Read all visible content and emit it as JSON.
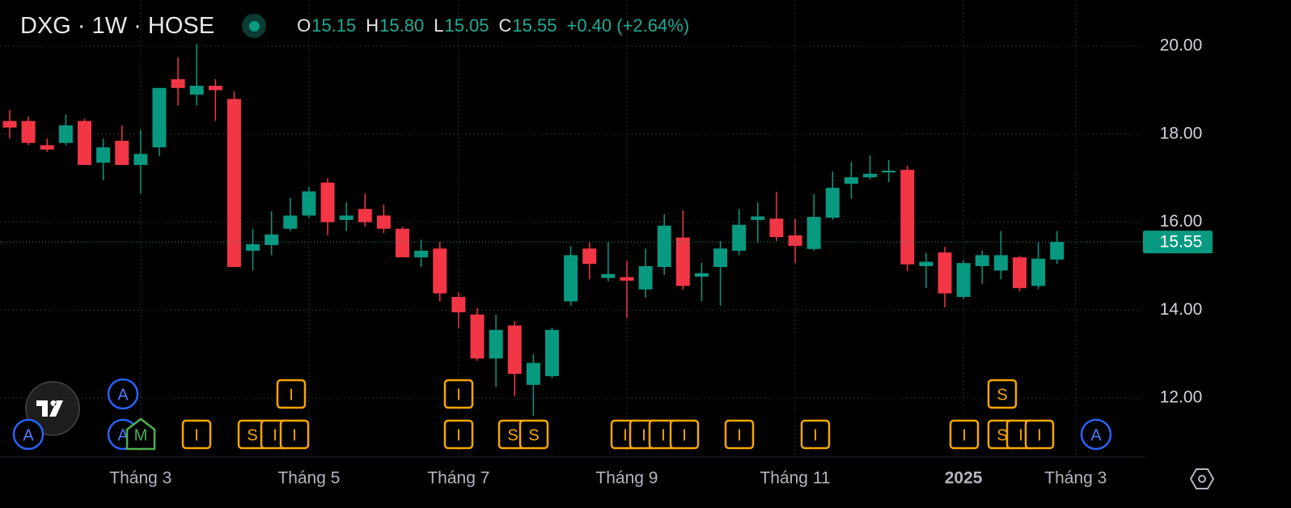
{
  "chart_data": {
    "type": "candlestick",
    "title": "DXG · 1W · HOSE",
    "ohlc_legend": [
      {
        "label": "O",
        "value": "15.15"
      },
      {
        "label": "H",
        "value": "15.80"
      },
      {
        "label": "L",
        "value": "15.05"
      },
      {
        "label": "C",
        "value": "15.55"
      }
    ],
    "change": "+0.40 (+2.64%)",
    "categories": [
      null,
      null,
      null,
      null,
      null,
      null,
      null,
      "Tháng 3",
      null,
      null,
      null,
      null,
      null,
      null,
      null,
      null,
      "Tháng 5",
      null,
      null,
      null,
      null,
      null,
      null,
      null,
      "Tháng 7",
      null,
      null,
      null,
      null,
      null,
      null,
      null,
      null,
      "Tháng 9",
      null,
      null,
      null,
      null,
      null,
      null,
      null,
      null,
      "Tháng 11",
      null,
      null,
      null,
      null,
      null,
      null,
      null,
      null,
      "2025",
      null,
      null,
      null,
      null,
      null,
      "Tháng 3"
    ],
    "open": [
      18.3,
      18.3,
      17.75,
      17.8,
      18.3,
      17.35,
      17.85,
      17.3,
      17.7,
      19.25,
      18.9,
      19.1,
      18.8,
      15.35,
      15.48,
      15.85,
      16.15,
      16.9,
      16.05,
      16.3,
      16.15,
      15.85,
      15.2,
      15.4,
      14.3,
      13.9,
      12.9,
      13.65,
      12.3,
      12.5,
      14.2,
      15.4,
      14.73,
      14.75,
      14.47,
      14.98,
      15.65,
      14.76,
      14.98,
      15.35,
      16.05,
      16.08,
      15.7,
      15.39,
      16.1,
      16.87,
      17.02,
      17.13,
      17.19,
      15.0,
      15.31,
      14.3,
      15.0,
      14.9,
      15.2,
      14.55,
      15.15,
      null
    ],
    "high": [
      18.55,
      18.4,
      17.9,
      18.45,
      18.35,
      17.9,
      18.2,
      18.1,
      19.05,
      19.75,
      20.05,
      19.25,
      18.98,
      15.85,
      16.25,
      16.55,
      16.8,
      17.0,
      16.45,
      16.65,
      16.4,
      15.9,
      15.6,
      15.55,
      14.4,
      14.05,
      13.9,
      13.75,
      13.0,
      13.6,
      15.45,
      15.55,
      15.55,
      15.12,
      15.4,
      16.18,
      16.27,
      15.08,
      15.57,
      16.3,
      16.45,
      16.69,
      16.08,
      16.64,
      17.15,
      17.37,
      17.52,
      17.41,
      17.28,
      15.3,
      15.44,
      15.13,
      15.35,
      15.8,
      15.24,
      15.54,
      15.8,
      null
    ],
    "low": [
      17.9,
      17.75,
      17.6,
      17.75,
      17.3,
      16.95,
      17.3,
      16.65,
      17.5,
      18.65,
      18.65,
      18.3,
      14.98,
      14.9,
      15.25,
      15.8,
      16.1,
      15.7,
      15.8,
      15.9,
      15.75,
      15.2,
      14.98,
      14.2,
      13.6,
      12.85,
      12.25,
      12.05,
      11.6,
      12.45,
      14.1,
      14.7,
      14.65,
      13.82,
      14.28,
      14.8,
      14.47,
      14.2,
      14.1,
      15.25,
      15.53,
      15.57,
      15.07,
      15.35,
      16.05,
      16.53,
      16.97,
      16.91,
      14.89,
      14.5,
      14.06,
      14.25,
      14.6,
      14.7,
      14.43,
      14.48,
      15.05,
      null
    ],
    "close": [
      18.15,
      17.8,
      17.65,
      18.2,
      17.3,
      17.7,
      17.3,
      17.55,
      19.05,
      19.05,
      19.1,
      19.0,
      14.98,
      15.5,
      15.72,
      16.15,
      16.7,
      16.0,
      16.15,
      16.0,
      15.85,
      15.2,
      15.35,
      14.38,
      13.95,
      12.9,
      13.55,
      12.55,
      12.8,
      13.55,
      15.25,
      15.05,
      14.82,
      14.67,
      15.0,
      15.92,
      14.55,
      14.84,
      15.4,
      15.94,
      16.13,
      15.66,
      15.46,
      16.12,
      16.78,
      17.02,
      17.1,
      17.17,
      15.04,
      15.1,
      14.38,
      15.07,
      15.25,
      15.25,
      14.5,
      15.17,
      15.55,
      null
    ],
    "up_color": "#089981",
    "down_color": "#f23645",
    "ylim": [
      10.66,
      21.05
    ],
    "yticks": [
      {
        "value": 12,
        "label": "12.00"
      },
      {
        "value": 14,
        "label": "14.00"
      },
      {
        "value": 16,
        "label": "16.00"
      },
      {
        "value": 18,
        "label": "18.00"
      },
      {
        "value": 20,
        "label": "20.00"
      }
    ],
    "grid": true,
    "last_price": 15.55,
    "events": [
      "A",
      "I",
      "I",
      "S",
      "A",
      "A",
      "M",
      "I",
      "S",
      "I",
      "I",
      "I",
      "S",
      "S",
      "I",
      "I",
      "I",
      "I",
      "I",
      "I",
      "I",
      "S",
      "I",
      "I",
      "A"
    ]
  }
}
